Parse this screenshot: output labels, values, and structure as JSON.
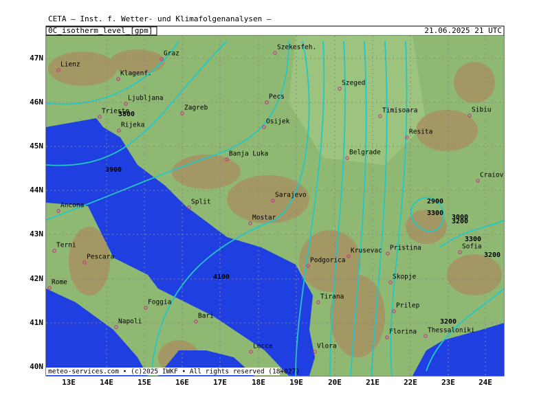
{
  "header": {
    "institute": "CETA — Inst. f. Wetter- und Klimafolgenanalysen —",
    "title": "0C_isotherm_level_[gpm]",
    "valid_time": "21.06.2025 21 UTC"
  },
  "map": {
    "lat_labels": [
      "47N",
      "46N",
      "45N",
      "44N",
      "43N",
      "42N",
      "41N",
      "40N"
    ],
    "lon_labels": [
      "13E",
      "14E",
      "15E",
      "16E",
      "17E",
      "18E",
      "19E",
      "20E",
      "21E",
      "22E",
      "23E",
      "24E"
    ],
    "cities": [
      "Lienz",
      "Graz",
      "Szekesfeh.",
      "Klagenf.",
      "Ljubljana",
      "Zagreb",
      "Pecs",
      "Szeged",
      "Timisoara",
      "Sibiu",
      "Trieste",
      "Rijeka",
      "Osijek",
      "Resita",
      "Belgrade",
      "Banja Luka",
      "Craiova",
      "Sarajevo",
      "Split",
      "Ancona",
      "Mostar",
      "Terni",
      "Pescara",
      "Podgorica",
      "Krusevac",
      "Pristina",
      "Sofia",
      "Skopje",
      "Rome",
      "Foggia",
      "Tirana",
      "Prilep",
      "Bari",
      "Napoli",
      "Thessaloniki",
      "Florina",
      "Vlora",
      "Lecce"
    ],
    "contour_labels": [
      "3800",
      "3900",
      "2900",
      "3300",
      "3000",
      "3200",
      "3300",
      "3200",
      "4100",
      "3200"
    ]
  },
  "footer": "meteo-services.com • (c)2025 IWKF • All rights reserved (18+027)"
}
